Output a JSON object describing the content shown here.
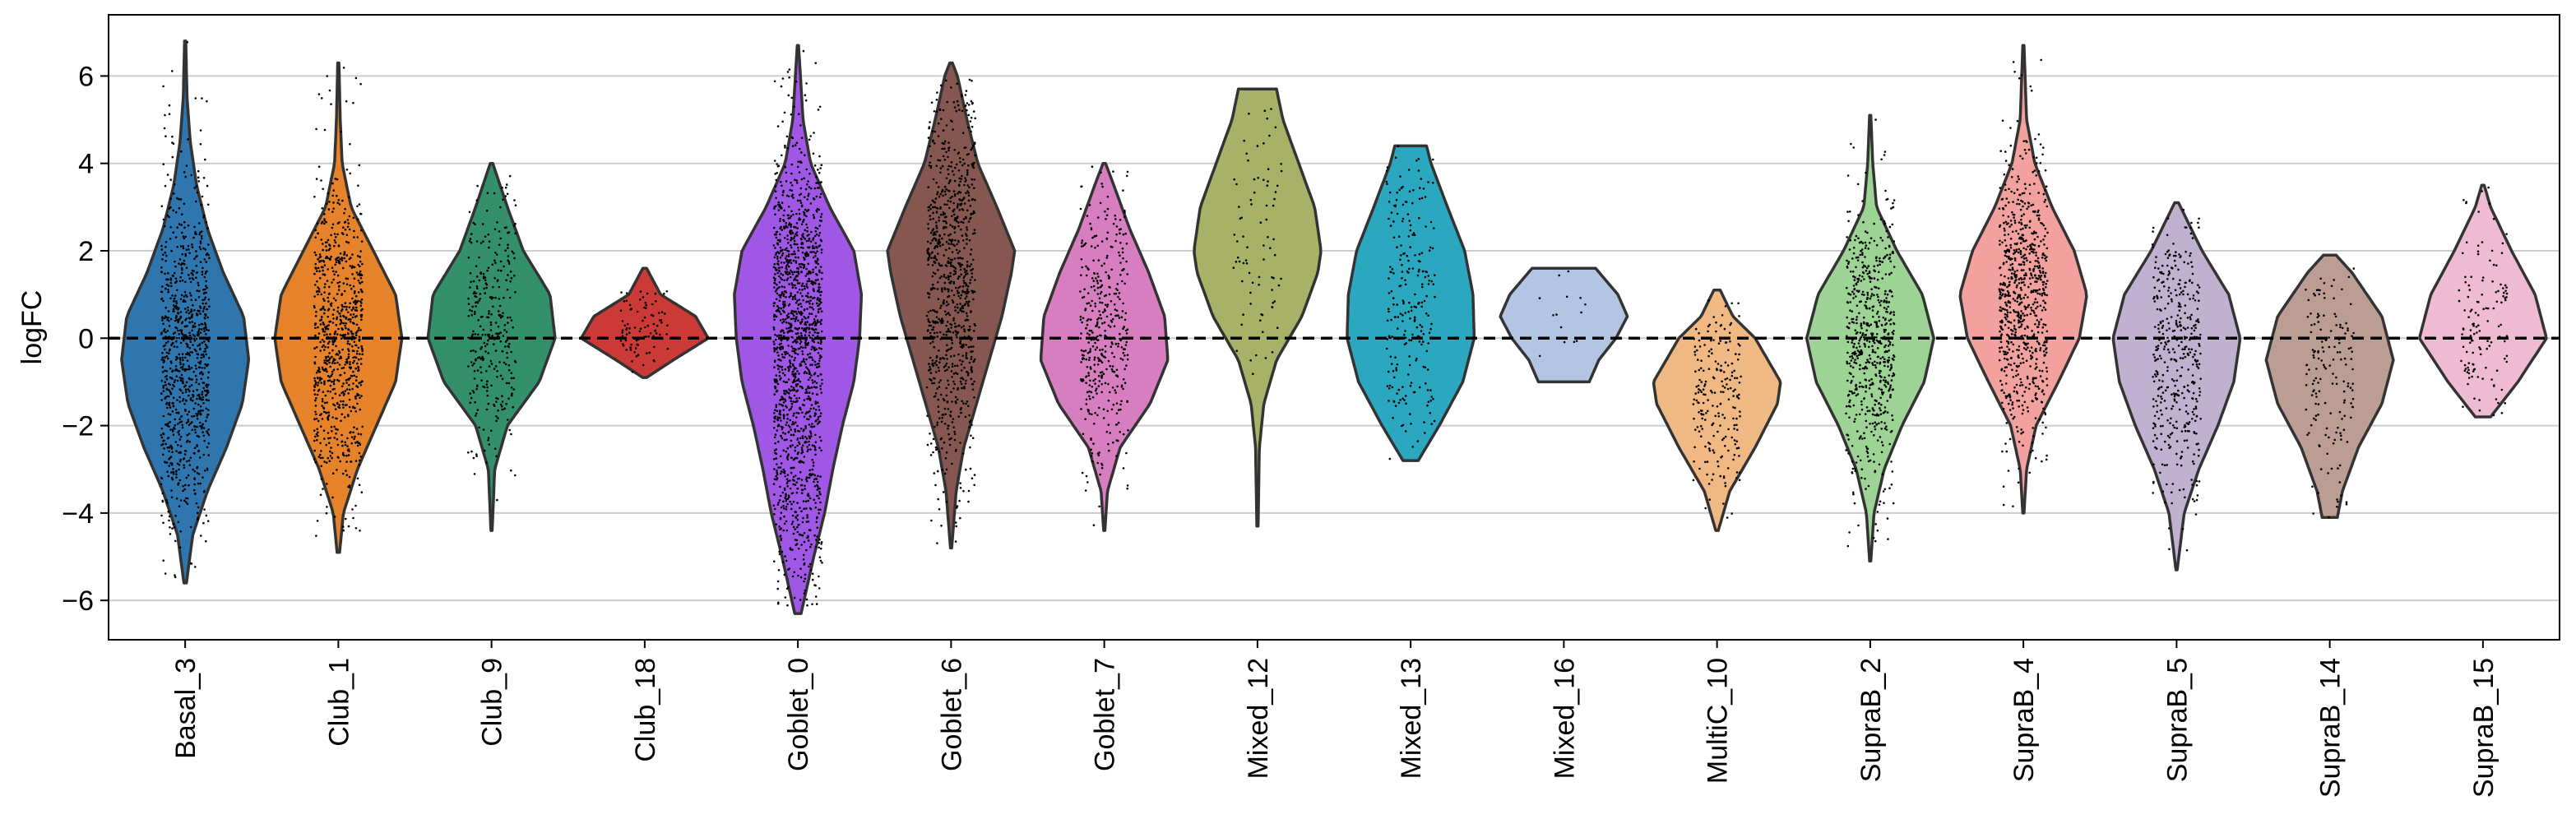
{
  "chart_data": {
    "type": "violin",
    "title": "",
    "xlabel": "",
    "ylabel": "logFC",
    "ylim": [
      -6.9,
      7.4
    ],
    "yticks": [
      -6,
      -4,
      -2,
      0,
      2,
      4,
      6
    ],
    "grid": "horizontal",
    "reference_line": 0,
    "categories": [
      {
        "name": "Basal_3",
        "color": "#2e76ad",
        "min": -5.6,
        "max": 6.8,
        "npoints": 900,
        "profile": [
          [
            -5.6,
            0.02
          ],
          [
            -4.5,
            0.12
          ],
          [
            -3.5,
            0.35
          ],
          [
            -2.5,
            0.65
          ],
          [
            -1.5,
            0.9
          ],
          [
            -0.5,
            1.0
          ],
          [
            0.5,
            0.92
          ],
          [
            1.5,
            0.6
          ],
          [
            2.5,
            0.35
          ],
          [
            3.5,
            0.18
          ],
          [
            4.5,
            0.08
          ],
          [
            5.5,
            0.03
          ],
          [
            6.8,
            0.01
          ]
        ]
      },
      {
        "name": "Club_1",
        "color": "#e6822a",
        "min": -4.9,
        "max": 6.3,
        "npoints": 800,
        "profile": [
          [
            -4.9,
            0.02
          ],
          [
            -4.0,
            0.08
          ],
          [
            -3.0,
            0.3
          ],
          [
            -2.0,
            0.6
          ],
          [
            -1.0,
            0.9
          ],
          [
            0.0,
            1.0
          ],
          [
            1.0,
            0.9
          ],
          [
            2.0,
            0.55
          ],
          [
            3.0,
            0.2
          ],
          [
            4.0,
            0.06
          ],
          [
            5.0,
            0.03
          ],
          [
            6.3,
            0.01
          ]
        ]
      },
      {
        "name": "Club_9",
        "color": "#33906b",
        "min": -4.4,
        "max": 4.0,
        "npoints": 320,
        "profile": [
          [
            -4.4,
            0.01
          ],
          [
            -3.0,
            0.05
          ],
          [
            -2.0,
            0.25
          ],
          [
            -1.0,
            0.75
          ],
          [
            0.0,
            1.0
          ],
          [
            1.0,
            0.92
          ],
          [
            2.0,
            0.5
          ],
          [
            3.0,
            0.25
          ],
          [
            4.0,
            0.02
          ]
        ]
      },
      {
        "name": "Club_18",
        "color": "#cb3a36",
        "min": -0.9,
        "max": 1.6,
        "npoints": 90,
        "profile": [
          [
            -0.9,
            0.03
          ],
          [
            -0.5,
            0.45
          ],
          [
            0.0,
            1.0
          ],
          [
            0.5,
            0.8
          ],
          [
            1.0,
            0.25
          ],
          [
            1.6,
            0.03
          ]
        ]
      },
      {
        "name": "Goblet_0",
        "color": "#a057e6",
        "min": -6.3,
        "max": 6.7,
        "npoints": 1500,
        "profile": [
          [
            -6.3,
            0.05
          ],
          [
            -5.0,
            0.25
          ],
          [
            -4.0,
            0.42
          ],
          [
            -3.0,
            0.55
          ],
          [
            -2.0,
            0.7
          ],
          [
            -1.0,
            0.88
          ],
          [
            0.0,
            0.97
          ],
          [
            1.0,
            1.0
          ],
          [
            2.0,
            0.88
          ],
          [
            3.0,
            0.5
          ],
          [
            4.0,
            0.2
          ],
          [
            5.0,
            0.08
          ],
          [
            6.0,
            0.04
          ],
          [
            6.7,
            0.01
          ]
        ]
      },
      {
        "name": "Goblet_6",
        "color": "#855750",
        "min": -4.8,
        "max": 6.3,
        "npoints": 900,
        "profile": [
          [
            -4.8,
            0.01
          ],
          [
            -3.5,
            0.08
          ],
          [
            -2.5,
            0.2
          ],
          [
            -1.5,
            0.4
          ],
          [
            -0.5,
            0.6
          ],
          [
            0.5,
            0.8
          ],
          [
            1.5,
            0.95
          ],
          [
            2.0,
            1.0
          ],
          [
            3.0,
            0.72
          ],
          [
            4.0,
            0.42
          ],
          [
            5.0,
            0.25
          ],
          [
            6.0,
            0.1
          ],
          [
            6.3,
            0.02
          ]
        ]
      },
      {
        "name": "Goblet_7",
        "color": "#d77ec0",
        "min": -4.4,
        "max": 4.0,
        "npoints": 420,
        "profile": [
          [
            -4.4,
            0.01
          ],
          [
            -3.5,
            0.05
          ],
          [
            -2.5,
            0.25
          ],
          [
            -1.5,
            0.72
          ],
          [
            -0.5,
            1.0
          ],
          [
            0.5,
            0.95
          ],
          [
            1.5,
            0.7
          ],
          [
            2.5,
            0.4
          ],
          [
            3.5,
            0.15
          ],
          [
            4.0,
            0.02
          ]
        ]
      },
      {
        "name": "Mixed_12",
        "color": "#a8b168",
        "min": -4.3,
        "max": 5.7,
        "npoints": 80,
        "profile": [
          [
            -4.3,
            0.01
          ],
          [
            -2.5,
            0.03
          ],
          [
            -1.5,
            0.1
          ],
          [
            -0.5,
            0.3
          ],
          [
            0.5,
            0.7
          ],
          [
            1.5,
            0.95
          ],
          [
            2.0,
            1.0
          ],
          [
            3.0,
            0.9
          ],
          [
            4.0,
            0.65
          ],
          [
            5.0,
            0.4
          ],
          [
            5.7,
            0.3
          ]
        ]
      },
      {
        "name": "Mixed_13",
        "color": "#2ba8c0",
        "min": -2.8,
        "max": 4.4,
        "npoints": 240,
        "profile": [
          [
            -2.8,
            0.12
          ],
          [
            -2.0,
            0.45
          ],
          [
            -1.0,
            0.82
          ],
          [
            0.0,
            1.0
          ],
          [
            1.0,
            0.98
          ],
          [
            2.0,
            0.85
          ],
          [
            3.0,
            0.58
          ],
          [
            4.0,
            0.32
          ],
          [
            4.4,
            0.25
          ]
        ]
      },
      {
        "name": "Mixed_16",
        "color": "#b2c5e3",
        "min": -1.0,
        "max": 1.6,
        "npoints": 14,
        "profile": [
          [
            -1.0,
            0.4
          ],
          [
            -0.5,
            0.55
          ],
          [
            0.0,
            0.82
          ],
          [
            0.5,
            1.0
          ],
          [
            1.0,
            0.85
          ],
          [
            1.6,
            0.5
          ]
        ]
      },
      {
        "name": "MultiC_10",
        "color": "#f0b984",
        "min": -4.4,
        "max": 1.1,
        "npoints": 210,
        "profile": [
          [
            -4.4,
            0.02
          ],
          [
            -3.5,
            0.2
          ],
          [
            -2.5,
            0.6
          ],
          [
            -1.5,
            0.95
          ],
          [
            -1.0,
            1.0
          ],
          [
            0.0,
            0.6
          ],
          [
            0.5,
            0.25
          ],
          [
            1.1,
            0.05
          ]
        ]
      },
      {
        "name": "SupraB_2",
        "color": "#9dd496",
        "min": -5.1,
        "max": 5.1,
        "npoints": 640,
        "profile": [
          [
            -5.1,
            0.01
          ],
          [
            -4.0,
            0.06
          ],
          [
            -3.0,
            0.22
          ],
          [
            -2.0,
            0.5
          ],
          [
            -1.0,
            0.85
          ],
          [
            0.0,
            1.0
          ],
          [
            1.0,
            0.82
          ],
          [
            2.0,
            0.42
          ],
          [
            3.0,
            0.1
          ],
          [
            4.0,
            0.04
          ],
          [
            5.1,
            0.01
          ]
        ]
      },
      {
        "name": "SupraB_4",
        "color": "#f2a19e",
        "min": -4.0,
        "max": 6.7,
        "npoints": 760,
        "profile": [
          [
            -4.0,
            0.01
          ],
          [
            -3.0,
            0.05
          ],
          [
            -2.0,
            0.2
          ],
          [
            -1.0,
            0.55
          ],
          [
            0.0,
            0.88
          ],
          [
            1.0,
            1.0
          ],
          [
            2.0,
            0.8
          ],
          [
            3.0,
            0.45
          ],
          [
            4.0,
            0.18
          ],
          [
            5.0,
            0.05
          ],
          [
            6.7,
            0.01
          ]
        ]
      },
      {
        "name": "SupraB_5",
        "color": "#c0b1d0",
        "min": -5.3,
        "max": 3.1,
        "npoints": 420,
        "profile": [
          [
            -5.3,
            0.01
          ],
          [
            -4.0,
            0.12
          ],
          [
            -3.0,
            0.35
          ],
          [
            -2.0,
            0.65
          ],
          [
            -1.0,
            0.9
          ],
          [
            0.0,
            1.0
          ],
          [
            1.0,
            0.82
          ],
          [
            2.0,
            0.4
          ],
          [
            3.1,
            0.03
          ]
        ]
      },
      {
        "name": "SupraB_14",
        "color": "#bc9d94",
        "min": -4.1,
        "max": 1.9,
        "npoints": 160,
        "profile": [
          [
            -4.1,
            0.12
          ],
          [
            -3.5,
            0.2
          ],
          [
            -2.5,
            0.45
          ],
          [
            -1.5,
            0.82
          ],
          [
            -0.5,
            1.0
          ],
          [
            0.5,
            0.82
          ],
          [
            1.5,
            0.35
          ],
          [
            1.9,
            0.1
          ]
        ]
      },
      {
        "name": "SupraB_15",
        "color": "#eebbd3",
        "min": -1.8,
        "max": 3.5,
        "npoints": 130,
        "profile": [
          [
            -1.8,
            0.12
          ],
          [
            -1.0,
            0.55
          ],
          [
            0.0,
            1.0
          ],
          [
            1.0,
            0.82
          ],
          [
            2.0,
            0.45
          ],
          [
            3.0,
            0.12
          ],
          [
            3.5,
            0.02
          ]
        ]
      }
    ]
  }
}
